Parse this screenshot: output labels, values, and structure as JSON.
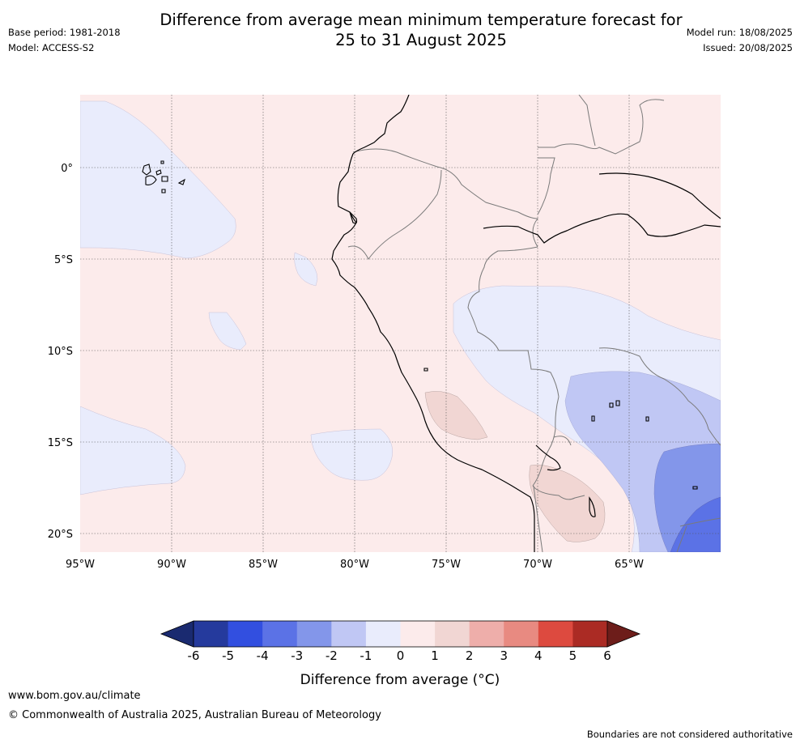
{
  "title_line1": "Difference from average mean minimum temperature forecast for",
  "title_line2": "25 to 31 August 2025",
  "base_period": "Base period: 1981-2018",
  "model": "Model: ACCESS-S2",
  "model_run": "Model run: 18/08/2025",
  "issued": "Issued: 20/08/2025",
  "map": {
    "lon_ticks": [
      "95°W",
      "90°W",
      "85°W",
      "80°W",
      "75°W",
      "70°W",
      "65°W"
    ],
    "lat_ticks": [
      "0°",
      "5°S",
      "10°S",
      "15°S",
      "20°S"
    ],
    "lon_range": [
      -95,
      -60
    ],
    "lat_range": [
      -21,
      4
    ]
  },
  "colorbar": {
    "ticks": [
      "-6",
      "-5",
      "-4",
      "-3",
      "-2",
      "-1",
      "0",
      "1",
      "2",
      "3",
      "4",
      "5",
      "6"
    ],
    "colors": [
      "#253a9d",
      "#324fe0",
      "#5b72e6",
      "#8396ea",
      "#c0c7f4",
      "#e9ecfc",
      "#fcebeb",
      "#f1d6d3",
      "#eeaeaa",
      "#e88a81",
      "#dd4a3f",
      "#ab2b24"
    ],
    "under_color": "#1a2a70",
    "over_color": "#6d1d1a",
    "label": "Difference from average (°C)"
  },
  "footer": {
    "url": "www.bom.gov.au/climate",
    "copyright": "© Commonwealth of Australia 2025, Australian Bureau of Meteorology",
    "disclaimer": "Boundaries are not considered authoritative"
  }
}
